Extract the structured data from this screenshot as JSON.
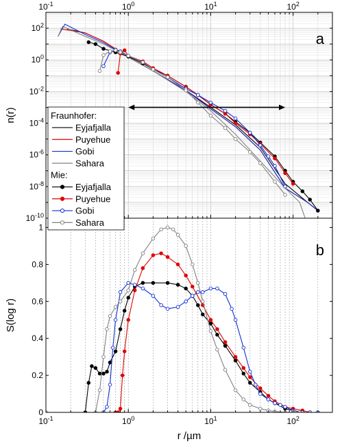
{
  "chart_data": [
    {
      "panel": "a",
      "type": "line",
      "ylabel": "n(r)",
      "xscale": "log",
      "yscale": "log",
      "xlim": [
        0.1,
        300
      ],
      "ylim": [
        1e-10,
        1000
      ],
      "x_ticks": [
        "10^-1",
        "10^0",
        "10^1",
        "10^2"
      ],
      "y_ticks": [
        "10^-10",
        "10^-8",
        "10^-6",
        "10^-4",
        "10^-2",
        "10^0",
        "10^2"
      ],
      "grid": true,
      "annotation": "double-headed arrow spanning r = 1 to 80 at n(r) = 1e-3",
      "legend_groups": [
        {
          "title": "Fraunhofer:",
          "entries": [
            "Eyjafjalla",
            "Puyehue",
            "Gobi",
            "Sahara"
          ]
        },
        {
          "title": "Mie:",
          "entries": [
            "Eyjafjalla",
            "Puyehue",
            "Gobi",
            "Sahara"
          ]
        }
      ],
      "legend_placement": "left",
      "series": [
        {
          "name": "Eyjafjalla",
          "group": "Fraunhofer",
          "color": "#000000",
          "marker": "none",
          "x": [
            0.18,
            0.3,
            0.5,
            1,
            2,
            5,
            10,
            20,
            40,
            80,
            150,
            200
          ],
          "y": [
            90,
            50,
            15,
            1.5,
            0.2,
            0.012,
            0.001,
            8e-05,
            3e-06,
            1.5e-08,
            1e-09,
            3e-10
          ]
        },
        {
          "name": "Puyehue",
          "group": "Fraunhofer",
          "color": "#e00000",
          "marker": "none",
          "x": [
            0.15,
            0.3,
            0.5,
            1,
            2,
            5,
            10,
            20,
            40,
            80,
            150,
            200
          ],
          "y": [
            90,
            50,
            15,
            1.5,
            0.2,
            0.012,
            0.0008,
            6e-05,
            2e-06,
            8e-09,
            1e-09,
            3e-10
          ]
        },
        {
          "name": "Gobi",
          "group": "Fraunhofer",
          "color": "#1030d0",
          "marker": "none",
          "x": [
            0.14,
            0.17,
            0.3,
            0.5,
            1,
            2,
            5,
            10,
            20,
            40,
            80,
            150,
            200
          ],
          "y": [
            30,
            180,
            40,
            12,
            1.5,
            0.2,
            0.012,
            0.0008,
            6e-05,
            2e-06,
            8e-09,
            1e-09,
            3e-10
          ]
        },
        {
          "name": "Sahara",
          "group": "Fraunhofer",
          "color": "#808080",
          "marker": "none",
          "x": [
            0.14,
            0.16,
            0.3,
            0.5,
            1,
            2,
            5,
            10,
            20,
            40,
            80,
            120,
            140
          ],
          "y": [
            30,
            130,
            30,
            10,
            1.5,
            0.2,
            0.01,
            0.0006,
            2e-05,
            4e-07,
            8e-09,
            1e-09,
            1e-10
          ]
        },
        {
          "name": "Eyjafjalla",
          "group": "Mie",
          "color": "#000000",
          "marker": "filled-circle",
          "x": [
            0.33,
            0.4,
            0.5,
            0.7,
            1,
            1.5,
            2,
            3,
            5,
            7,
            10,
            15,
            20,
            30,
            40,
            60,
            80,
            100,
            130,
            160,
            200
          ],
          "y": [
            13,
            10,
            5,
            3,
            1.6,
            0.6,
            0.25,
            0.1,
            0.02,
            0.006,
            0.0015,
            0.0004,
            0.00012,
            2.5e-05,
            6e-06,
            8e-07,
            1e-07,
            2e-08,
            5e-09,
            1.5e-09,
            3e-10
          ]
        },
        {
          "name": "Puyehue",
          "group": "Mie",
          "color": "#e00000",
          "marker": "filled-circle",
          "x": [
            0.75,
            0.8,
            0.9,
            1,
            1.5,
            2,
            3,
            5,
            7,
            10,
            15,
            20,
            30,
            40,
            60,
            80,
            100
          ],
          "y": [
            0.15,
            2.5,
            4,
            1.8,
            0.8,
            0.3,
            0.1,
            0.02,
            0.006,
            0.0015,
            0.0004,
            0.0001,
            2e-05,
            5e-06,
            6e-07,
            7e-08,
            1.5e-08
          ]
        },
        {
          "name": "Gobi",
          "group": "Mie",
          "color": "#1030d0",
          "marker": "open-circle",
          "x": [
            0.5,
            0.6,
            0.7,
            0.8,
            1,
            1.5,
            2,
            3,
            5,
            7,
            10,
            15,
            20,
            30,
            40,
            50,
            60,
            80
          ],
          "y": [
            0.4,
            3,
            4.5,
            3.5,
            1.8,
            0.7,
            0.25,
            0.08,
            0.015,
            0.006,
            0.002,
            0.0006,
            0.0002,
            2.5e-05,
            4e-06,
            8e-07,
            2e-07,
            1e-08
          ]
        },
        {
          "name": "Sahara",
          "group": "Mie",
          "color": "#808080",
          "marker": "open-circle",
          "x": [
            0.45,
            0.5,
            0.6,
            0.7,
            0.8,
            1,
            1.5,
            2,
            3,
            5,
            7,
            10,
            15,
            20,
            30,
            40,
            60,
            80
          ],
          "y": [
            0.2,
            2,
            3.5,
            4,
            3,
            1.8,
            0.7,
            0.25,
            0.08,
            0.012,
            0.002,
            0.0003,
            5e-05,
            1e-05,
            1.5e-06,
            3e-07,
            2e-08,
            3e-09
          ]
        }
      ]
    },
    {
      "panel": "b",
      "type": "line",
      "xlabel": "r /µm",
      "ylabel": "S(log r)",
      "xscale": "log",
      "xlim": [
        0.1,
        300
      ],
      "ylim": [
        0,
        1.05
      ],
      "x_ticks": [
        "10^-1",
        "10^0",
        "10^1",
        "10^2"
      ],
      "y_ticks": [
        "0",
        "0.2",
        "0.4",
        "0.6",
        "0.8",
        "1"
      ],
      "grid": "vertical dotted",
      "series": [
        {
          "name": "Eyjafjalla",
          "color": "#000000",
          "marker": "filled-circle",
          "x": [
            0.1,
            0.3,
            0.33,
            0.36,
            0.4,
            0.45,
            0.5,
            0.55,
            0.6,
            0.7,
            0.8,
            0.9,
            1,
            1.2,
            1.5,
            2,
            3,
            4,
            5,
            6,
            7,
            8,
            10,
            12,
            15,
            20,
            25,
            30,
            40,
            50,
            60,
            80,
            100,
            130,
            160,
            200
          ],
          "y": [
            0,
            0,
            0.16,
            0.25,
            0.24,
            0.21,
            0.21,
            0.22,
            0.27,
            0.33,
            0.45,
            0.55,
            0.62,
            0.68,
            0.7,
            0.7,
            0.7,
            0.69,
            0.67,
            0.63,
            0.58,
            0.53,
            0.48,
            0.42,
            0.36,
            0.28,
            0.21,
            0.16,
            0.11,
            0.07,
            0.05,
            0.02,
            0.01,
            0,
            0,
            0
          ]
        },
        {
          "name": "Puyehue",
          "color": "#e00000",
          "marker": "filled-circle",
          "x": [
            0.1,
            0.7,
            0.75,
            0.8,
            0.85,
            0.9,
            1,
            1.2,
            1.5,
            2,
            2.5,
            3,
            4,
            5,
            6,
            8,
            10,
            12,
            15,
            20,
            25,
            30,
            40,
            50,
            60,
            80,
            100,
            130,
            160,
            200
          ],
          "y": [
            0,
            0,
            0,
            0.02,
            0.2,
            0.33,
            0.5,
            0.66,
            0.78,
            0.85,
            0.86,
            0.84,
            0.8,
            0.74,
            0.68,
            0.58,
            0.5,
            0.45,
            0.38,
            0.3,
            0.24,
            0.19,
            0.13,
            0.09,
            0.06,
            0.03,
            0.02,
            0.01,
            0,
            0
          ]
        },
        {
          "name": "Gobi",
          "color": "#1030d0",
          "marker": "open-circle",
          "x": [
            0.1,
            0.5,
            0.55,
            0.6,
            0.65,
            0.7,
            0.8,
            1,
            1.2,
            1.5,
            2,
            2.5,
            3,
            4,
            5,
            6,
            7,
            8,
            10,
            12,
            15,
            18,
            20,
            25,
            30,
            35,
            40,
            50,
            60,
            70,
            80,
            100,
            130,
            160,
            200
          ],
          "y": [
            0,
            0,
            0.03,
            0.15,
            0.35,
            0.5,
            0.65,
            0.7,
            0.69,
            0.67,
            0.63,
            0.58,
            0.56,
            0.57,
            0.6,
            0.63,
            0.65,
            0.65,
            0.67,
            0.67,
            0.64,
            0.56,
            0.5,
            0.35,
            0.22,
            0.15,
            0.1,
            0.07,
            0.05,
            0.04,
            0.03,
            0.01,
            0,
            0,
            0
          ]
        },
        {
          "name": "Sahara",
          "color": "#808080",
          "marker": "open-circle",
          "x": [
            0.1,
            0.4,
            0.45,
            0.5,
            0.55,
            0.6,
            0.7,
            0.8,
            1,
            1.2,
            1.5,
            2,
            2.5,
            3,
            3.5,
            4,
            5,
            6,
            7,
            8,
            10,
            12,
            15,
            20,
            25,
            30,
            40,
            50,
            60,
            80,
            100,
            120
          ],
          "y": [
            0,
            0,
            0.12,
            0.3,
            0.45,
            0.52,
            0.57,
            0.6,
            0.66,
            0.77,
            0.86,
            0.94,
            0.99,
            1.0,
            0.99,
            0.96,
            0.9,
            0.8,
            0.7,
            0.6,
            0.44,
            0.34,
            0.23,
            0.12,
            0.07,
            0.04,
            0.02,
            0.01,
            0.005,
            0,
            0,
            0
          ]
        }
      ]
    }
  ]
}
